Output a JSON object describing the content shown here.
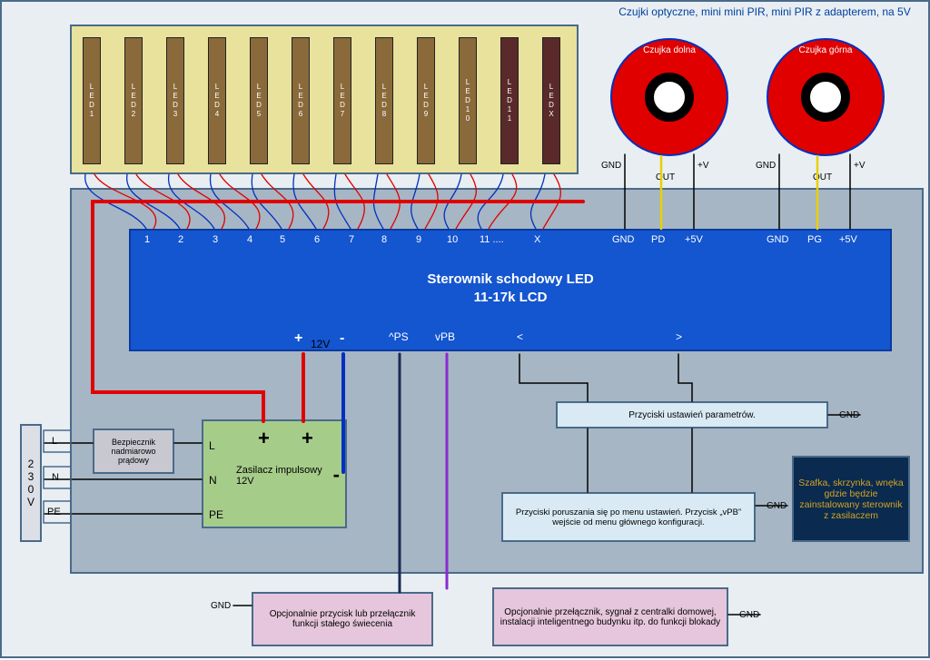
{
  "colors": {
    "canvas_bg": "#e8eef2",
    "border": "#4a6a8a",
    "led_panel_bg": "#e8e29d",
    "led_brown": "#8a6a3a",
    "led_dark": "#5a2a2a",
    "sensor_red": "#e00000",
    "sensor_border": "#0030c0",
    "controller_bg": "#1455d0",
    "controller_border": "#0a3aa0",
    "enclosure_bg": "#a6b6c4",
    "psu_bg": "#a6cc8a",
    "fuse_bg": "#c8c8d0",
    "btn_bg": "#d9eaf4",
    "opt_bg": "#e6c6dc",
    "note_bg": "#0a2a50",
    "note_fg": "#d4a520",
    "wire_red": "#e00000",
    "wire_blue": "#0030c0",
    "wire_darknavy": "#1a2a55",
    "wire_purple": "#8a2ad0",
    "wire_yellow": "#e8d000",
    "wire_black": "#000000"
  },
  "sensors_title": "Czujki optyczne, mini mini PIR, mini PIR z adapterem,\nna 5V",
  "sensor_lower_label": "Czujka dolna",
  "sensor_upper_label": "Czujka górna",
  "sensor_pins": {
    "gnd": "GND",
    "out": "OUT",
    "vplus": "+V"
  },
  "leds": [
    {
      "label": "LED1",
      "variant": "brown"
    },
    {
      "label": "LED2",
      "variant": "brown"
    },
    {
      "label": "LED3",
      "variant": "brown"
    },
    {
      "label": "LED4",
      "variant": "brown"
    },
    {
      "label": "LED5",
      "variant": "brown"
    },
    {
      "label": "LED6",
      "variant": "brown"
    },
    {
      "label": "LED7",
      "variant": "brown"
    },
    {
      "label": "LED8",
      "variant": "brown"
    },
    {
      "label": "LED9",
      "variant": "brown"
    },
    {
      "label": "LED10",
      "variant": "brown"
    },
    {
      "label": "LED11",
      "variant": "dark"
    },
    {
      "label": "LEDX",
      "variant": "dark"
    }
  ],
  "controller": {
    "title": "Sterownik schodowy LED",
    "subtitle": "11-17k LCD",
    "top_left_numbers": [
      "1",
      "2",
      "3",
      "4",
      "5",
      "6",
      "7",
      "8",
      "9",
      "10",
      "11 ....",
      "X"
    ],
    "top_right_group1": [
      "GND",
      "PD",
      "+5V"
    ],
    "top_right_group2": [
      "GND",
      "PG",
      "+5V"
    ],
    "power_label_12v": "12V",
    "bottom": {
      "plus": "+",
      "minus": "-",
      "ps": "^PS",
      "pb": "vPB",
      "lt": "<",
      "gt": ">"
    }
  },
  "psu": {
    "text": "Zasilacz impulsowy 12V",
    "L": "L",
    "N": "N",
    "PE": "PE",
    "plus": "+",
    "minus": "-"
  },
  "fuse_text": "Bezpiecznik nadmiarowo prądowy",
  "mains": {
    "label": "230V",
    "L": "L",
    "N": "N",
    "PE": "PE"
  },
  "btn_params_text": "Przyciski ustawień parametrów.",
  "btn_menu_text": "Przyciski poruszania się po menu ustawień. Przycisk „vPB” wejście od menu głównego konfiguracji.",
  "note_text": "Szafka, skrzynka, wnęka gdzie będzie zainstalowany sterownik z zasilaczem",
  "opt_ps_text": "Opcjonalnie przycisk lub przełącznik funkcji stałego świecenia",
  "opt_pb_text": "Opcjonalnie przełącznik, sygnał z centralki domowej, instalacji inteligentnego budynku itp. do funkcji blokady",
  "gnd_label": "GND"
}
